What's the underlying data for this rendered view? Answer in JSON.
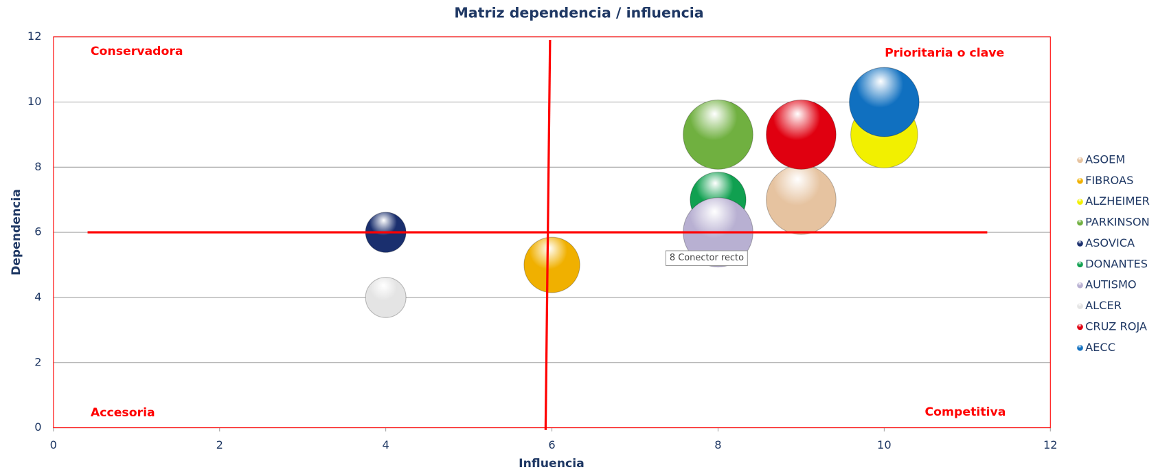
{
  "chart_data": {
    "type": "bubble",
    "title": "Matriz dependencia / influencia",
    "x_label": "Influencia",
    "y_label": "Dependencia",
    "xlim": [
      0,
      12
    ],
    "xticks": [
      0,
      2,
      4,
      6,
      8,
      10,
      12
    ],
    "ylim": [
      0,
      12
    ],
    "yticks": [
      0,
      2,
      4,
      6,
      8,
      10,
      12
    ],
    "grid": true,
    "legend": "right",
    "annotations": [
      "Conservadora",
      "Prioritaria o clave",
      "Accesoria",
      "Competitiva"
    ],
    "tooltip": "8 Conector recto",
    "series": [
      {
        "name": "ASOEM",
        "color": "#e6c3a0",
        "x": [
          9
        ],
        "values": [
          7
        ],
        "sizes": [
          5
        ]
      },
      {
        "name": "FIBROAS",
        "color": "#f0b000",
        "x": [
          6
        ],
        "values": [
          5
        ],
        "sizes": [
          4
        ]
      },
      {
        "name": "ALZHEIMER",
        "color": "#f2f000",
        "x": [
          10
        ],
        "values": [
          9
        ],
        "sizes": [
          4.8
        ]
      },
      {
        "name": "PARKINSON",
        "color": "#70b040",
        "x": [
          8
        ],
        "values": [
          9
        ],
        "sizes": [
          5
        ]
      },
      {
        "name": "ASOVICA",
        "color": "#1a2f6e",
        "x": [
          4
        ],
        "values": [
          6
        ],
        "sizes": [
          2.9
        ]
      },
      {
        "name": "DONANTES",
        "color": "#10a050",
        "x": [
          8
        ],
        "values": [
          7
        ],
        "sizes": [
          4
        ]
      },
      {
        "name": "AUTISMO",
        "color": "#b8b0d2",
        "x": [
          8
        ],
        "values": [
          6
        ],
        "sizes": [
          5
        ]
      },
      {
        "name": "ALCER",
        "color": "#e4e4e4",
        "x": [
          4
        ],
        "values": [
          4
        ],
        "sizes": [
          2.9
        ]
      },
      {
        "name": "CRUZ ROJA",
        "color": "#e00010",
        "x": [
          9
        ],
        "values": [
          9
        ],
        "sizes": [
          5
        ]
      },
      {
        "name": "AECC",
        "color": "#1070c0",
        "x": [
          10
        ],
        "values": [
          10
        ],
        "sizes": [
          5
        ]
      }
    ]
  }
}
